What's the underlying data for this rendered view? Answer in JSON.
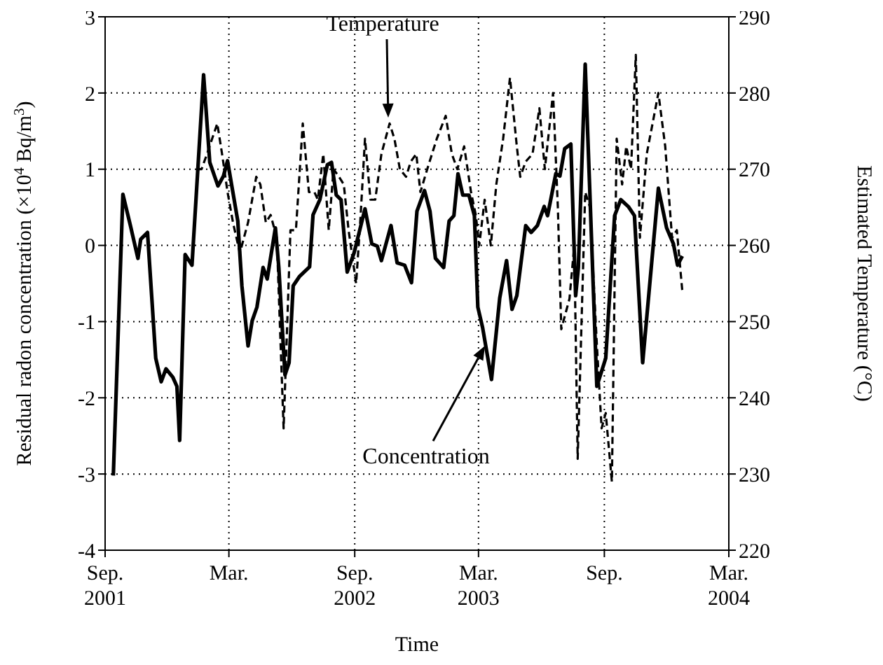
{
  "chart_data": {
    "type": "line",
    "xlabel": "Time",
    "ylabel": "Residual radon concentration (×10$^{4}$ Bq/m$^{3}$)",
    "y2label": "Estimated Temperature (°C)",
    "xlim": [
      "2001-09-01",
      "2004-03-01"
    ],
    "xticks": [
      {
        "value": "2001-09-01",
        "label": "Sep.\n2001"
      },
      {
        "value": "2002-03-01",
        "label": "Mar."
      },
      {
        "value": "2002-09-01",
        "label": "Sep.\n2002"
      },
      {
        "value": "2003-03-01",
        "label": "Mar.\n2003"
      },
      {
        "value": "2003-09-01",
        "label": "Sep."
      },
      {
        "value": "2004-03-01",
        "label": "Mar.\n2004"
      }
    ],
    "ylim": [
      -4,
      3
    ],
    "yticks": [
      -4,
      -3,
      -2,
      -1,
      0,
      1,
      2,
      3
    ],
    "y2lim": [
      220,
      290
    ],
    "y2ticks": [
      220,
      230,
      240,
      250,
      260,
      270,
      280,
      290
    ],
    "grid": true,
    "marker": "none",
    "annotations": [
      "Temperature",
      "Concentration"
    ],
    "series": [
      {
        "color": "#000000",
        "line_style": "solid",
        "x": [
          "2001-09-13",
          "2001-09-27",
          "2001-10-08",
          "2001-10-19",
          "2001-10-23",
          "2001-11-02",
          "2001-11-14",
          "2001-11-22",
          "2001-11-29",
          "2001-12-09",
          "2001-12-15",
          "2001-12-19",
          "2001-12-27",
          "2002-01-06",
          "2002-01-23",
          "2002-02-01",
          "2002-02-13",
          "2002-02-21",
          "2002-02-27",
          "2002-03-14",
          "2002-03-20",
          "2002-03-29",
          "2002-04-04",
          "2002-04-11",
          "2002-04-20",
          "2002-04-26",
          "2002-05-08",
          "2002-05-13",
          "2002-05-22",
          "2002-05-28",
          "2002-06-03",
          "2002-06-12",
          "2002-06-27",
          "2002-07-02",
          "2002-07-12",
          "2002-07-23",
          "2002-07-29",
          "2002-08-05",
          "2002-08-12",
          "2002-08-21",
          "2002-08-31",
          "2002-09-16",
          "2002-09-26",
          "2002-10-04",
          "2002-10-10",
          "2002-10-24",
          "2002-11-02",
          "2002-11-13",
          "2002-11-23",
          "2002-12-01",
          "2002-12-12",
          "2002-12-20",
          "2002-12-28",
          "2003-01-09",
          "2003-01-17",
          "2003-01-24",
          "2003-01-30",
          "2003-02-06",
          "2003-02-15",
          "2003-02-23",
          "2003-02-28",
          "2003-03-07",
          "2003-03-20",
          "2003-04-01",
          "2003-04-11",
          "2003-04-19",
          "2003-04-26",
          "2003-05-09",
          "2003-05-17",
          "2003-05-26",
          "2003-06-05",
          "2003-06-10",
          "2003-06-22",
          "2003-06-28",
          "2003-07-05",
          "2003-07-14",
          "2003-07-21",
          "2003-07-25",
          "2003-08-04",
          "2003-08-21",
          "2003-09-03",
          "2003-09-16",
          "2003-09-25",
          "2003-10-06",
          "2003-10-15",
          "2003-10-27",
          "2003-11-19",
          "2003-12-01",
          "2003-12-11",
          "2003-12-17",
          "2003-12-24"
        ],
        "values": [
          -3.02,
          0.67,
          0.26,
          -0.17,
          0.08,
          0.17,
          -1.48,
          -1.79,
          -1.62,
          -1.73,
          -1.85,
          -2.56,
          -0.12,
          -0.26,
          2.24,
          1.09,
          0.78,
          0.91,
          1.11,
          0.32,
          -0.53,
          -1.32,
          -0.99,
          -0.81,
          -0.29,
          -0.44,
          0.23,
          -0.29,
          -1.7,
          -1.54,
          -0.53,
          -0.41,
          -0.28,
          0.4,
          0.6,
          1.06,
          1.09,
          0.66,
          0.6,
          -0.35,
          -0.1,
          0.48,
          0.02,
          -0.01,
          -0.2,
          0.26,
          -0.23,
          -0.26,
          -0.49,
          0.45,
          0.72,
          0.45,
          -0.17,
          -0.29,
          0.32,
          0.39,
          0.94,
          0.66,
          0.66,
          0.39,
          -0.81,
          -1.08,
          -1.76,
          -0.69,
          -0.2,
          -0.84,
          -0.66,
          0.26,
          0.17,
          0.26,
          0.51,
          0.39,
          0.94,
          0.91,
          1.27,
          1.33,
          -0.66,
          -0.29,
          2.38,
          -1.85,
          -1.48,
          0.39,
          0.6,
          0.51,
          0.39,
          -1.54,
          0.75,
          0.23,
          0.02,
          -0.26,
          -0.14
        ]
      },
      {
        "color": "#000000",
        "line_style": "dashed",
        "axis": "y2",
        "x": [
          "2002-01-13",
          "2002-01-20",
          "2002-01-28",
          "2002-02-12",
          "2002-02-19",
          "2002-02-27",
          "2002-03-07",
          "2002-03-17",
          "2002-03-29",
          "2002-04-10",
          "2002-04-16",
          "2002-04-24",
          "2002-05-01",
          "2002-05-10",
          "2002-05-20",
          "2002-05-30",
          "2002-06-07",
          "2002-06-17",
          "2002-06-26",
          "2002-07-04",
          "2002-07-09",
          "2002-07-17",
          "2002-07-25",
          "2002-08-01",
          "2002-08-09",
          "2002-08-16",
          "2002-08-23",
          "2002-09-03",
          "2002-09-09",
          "2002-09-16",
          "2002-09-24",
          "2002-10-01",
          "2002-10-10",
          "2002-10-22",
          "2002-10-29",
          "2002-11-06",
          "2002-11-15",
          "2002-11-22",
          "2002-11-30",
          "2002-12-06",
          "2002-12-16",
          "2002-12-30",
          "2003-01-12",
          "2003-01-21",
          "2003-01-29",
          "2003-02-08",
          "2003-02-18",
          "2003-02-25",
          "2003-03-02",
          "2003-03-10",
          "2003-03-19",
          "2003-03-27",
          "2003-04-06",
          "2003-04-16",
          "2003-04-26",
          "2003-05-01",
          "2003-05-09",
          "2003-05-19",
          "2003-05-29",
          "2003-06-06",
          "2003-06-18",
          "2003-06-25",
          "2003-06-30",
          "2003-07-12",
          "2003-07-19",
          "2003-07-24",
          "2003-08-04",
          "2003-08-11",
          "2003-08-21",
          "2003-08-28",
          "2003-09-03",
          "2003-09-12",
          "2003-09-19",
          "2003-09-27",
          "2003-10-03",
          "2003-10-10",
          "2003-10-17",
          "2003-10-23",
          "2003-11-02",
          "2003-11-19",
          "2003-11-29",
          "2003-12-09",
          "2003-12-16",
          "2003-12-24"
        ],
        "values": [
          270,
          270,
          272,
          276,
          272,
          267,
          263,
          259,
          263,
          269,
          268,
          263,
          264,
          261,
          236,
          262,
          262,
          276,
          267,
          267,
          266,
          272,
          262,
          270,
          269,
          268,
          262,
          255,
          263,
          274,
          266,
          266,
          272,
          276,
          274,
          270,
          269,
          271,
          272,
          267,
          270,
          274,
          277,
          272,
          270,
          273,
          267,
          264,
          260,
          266,
          260,
          268,
          274,
          282,
          273,
          269,
          271,
          272,
          278,
          270,
          280,
          265,
          249,
          253,
          260,
          232,
          267,
          265,
          247,
          236,
          238,
          229,
          274,
          268,
          273,
          270,
          285,
          261,
          272,
          280,
          273,
          261,
          262,
          254
        ]
      }
    ]
  }
}
